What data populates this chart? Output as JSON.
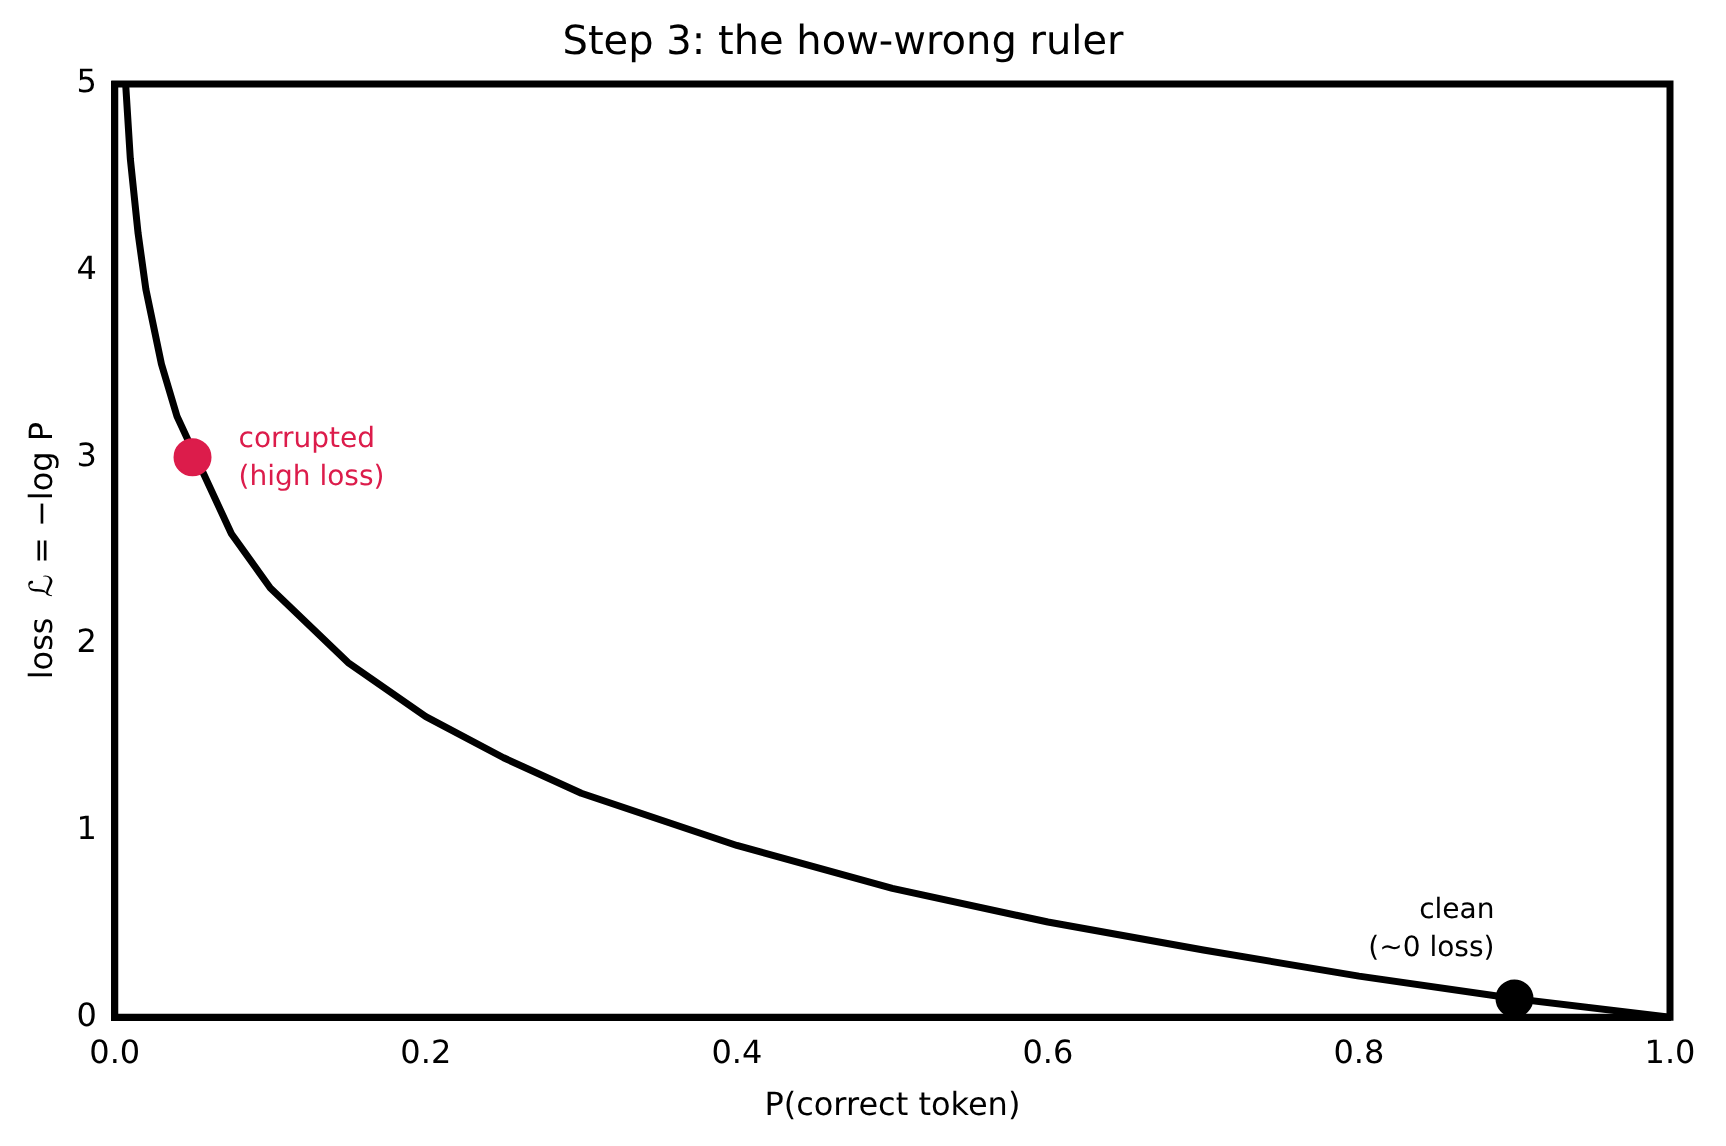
{
  "chart_data": {
    "type": "line",
    "title": "Step 3: the how-wrong ruler",
    "xlabel": "P(correct token)",
    "ylabel": "loss  ℒ = −log P",
    "series": [
      {
        "color": "#000000",
        "marker": "none",
        "x": [
          0.007,
          0.01,
          0.015,
          0.02,
          0.03,
          0.04,
          0.075,
          0.1,
          0.15,
          0.2,
          0.25,
          0.3,
          0.4,
          0.5,
          0.6,
          0.7,
          0.8,
          0.9,
          1.0
        ],
        "values": [
          5,
          4.6,
          4.2,
          3.9,
          3.5,
          3.22,
          2.59,
          2.3,
          1.9,
          1.61,
          1.39,
          1.2,
          0.92,
          0.69,
          0.51,
          0.36,
          0.22,
          0.1,
          0
        ]
      },
      {
        "type": "scatter",
        "marker": "circle",
        "color": "#dc1c4b",
        "x": [
          0.05
        ],
        "values": [
          3.0
        ]
      },
      {
        "type": "scatter",
        "marker": "circle",
        "color": "#000000",
        "x": [
          0.9
        ],
        "values": [
          0.1
        ]
      }
    ],
    "annotations": [
      {
        "text": "corrupted\n(high loss)",
        "x": 0.05,
        "y": 3.0
      },
      {
        "text": "clean\n(~0 loss)",
        "x": 0.9,
        "y": 0.1
      }
    ],
    "xlim": [
      0,
      1
    ],
    "ylim": [
      0,
      5
    ],
    "xticks": [
      {
        "value": 0,
        "label": "0.0"
      },
      {
        "value": 0.2,
        "label": "0.2"
      },
      {
        "value": 0.4,
        "label": "0.4"
      },
      {
        "value": 0.6,
        "label": "0.6"
      },
      {
        "value": 0.8,
        "label": "0.8"
      },
      {
        "value": 1,
        "label": "1.0"
      }
    ],
    "yticks": [
      0,
      1,
      2,
      3,
      4,
      5
    ],
    "grid": false,
    "legend": false,
    "line_style": "solid"
  }
}
